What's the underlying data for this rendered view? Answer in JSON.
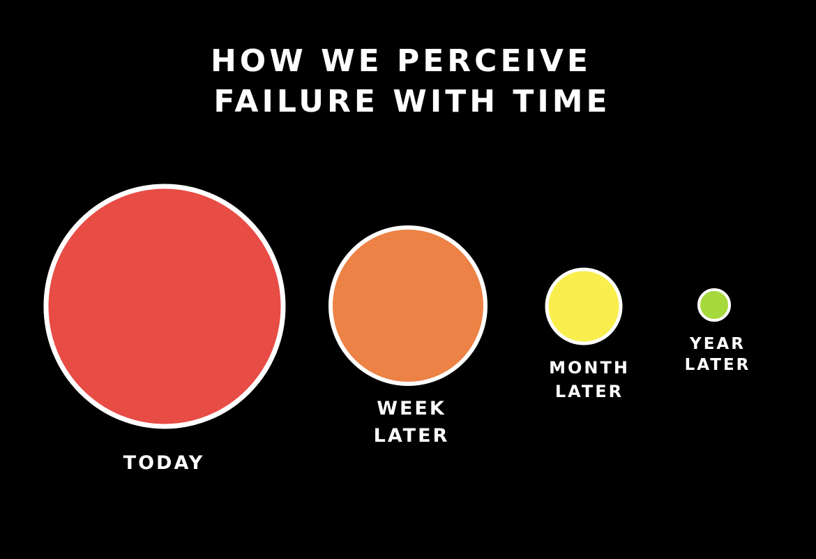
{
  "title": {
    "line1": "HOW WE PERCEIVE",
    "line2": "FAILURE WITH TIME"
  },
  "stages": [
    {
      "id": "today",
      "label_lines": [
        "TODAY"
      ],
      "color": "#E74C45"
    },
    {
      "id": "week",
      "label_lines": [
        "WEEK",
        "LATER"
      ],
      "color": "#EC8245"
    },
    {
      "id": "month",
      "label_lines": [
        "MONTH",
        "LATER"
      ],
      "color": "#F9EE4E"
    },
    {
      "id": "year",
      "label_lines": [
        "YEAR",
        "LATER"
      ],
      "color": "#A6D93B"
    }
  ],
  "outline_color": "#FFFFFF",
  "background_color": "#000000"
}
